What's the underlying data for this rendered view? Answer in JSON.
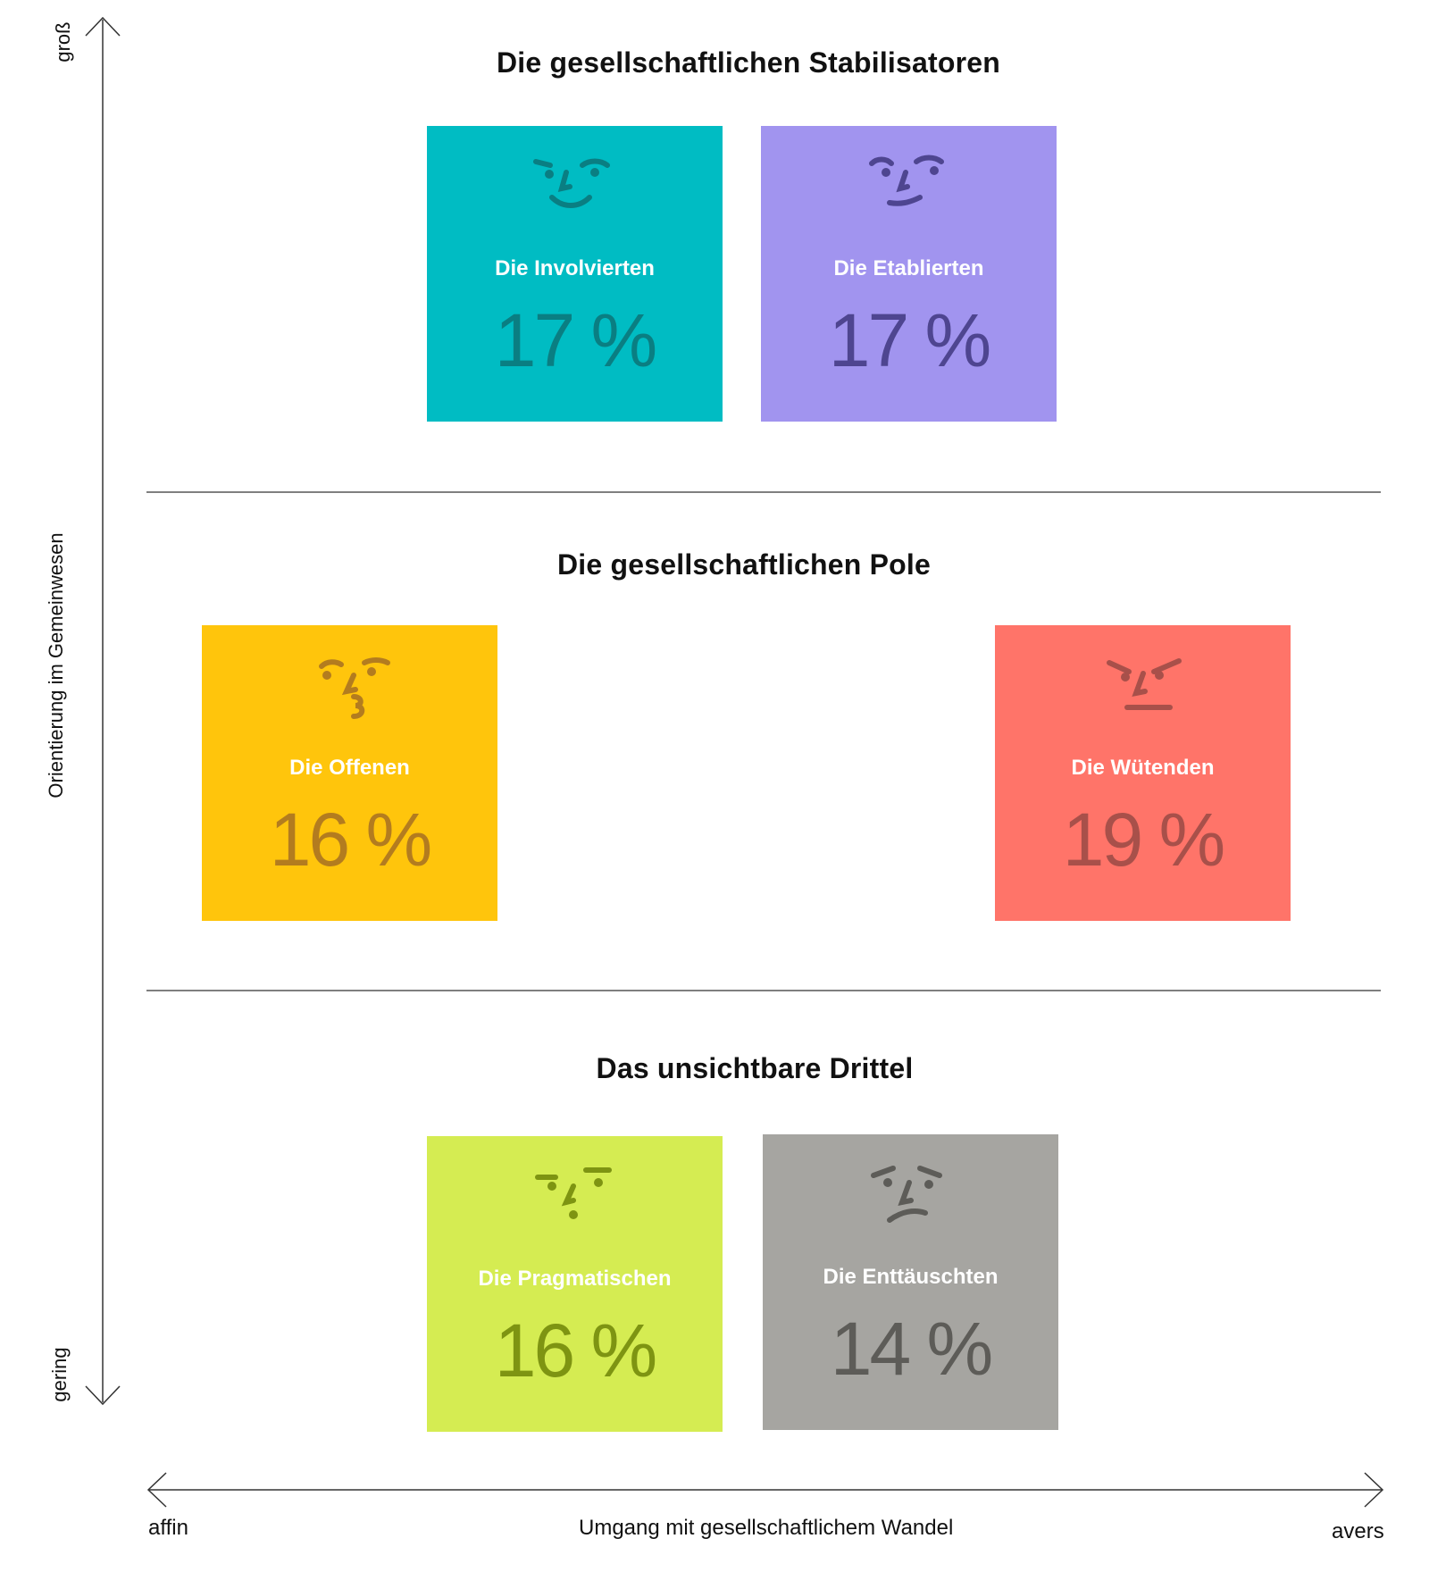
{
  "axes": {
    "y_label": "Orientierung im Gemeinwesen",
    "y_top": "groß",
    "y_bottom": "gering",
    "x_label": "Umgang mit gesellschaftlichem Wandel",
    "x_left": "affin",
    "x_right": "avers"
  },
  "sections": [
    {
      "title": "Die gesellschaftlichen Stabilisatoren"
    },
    {
      "title": "Die gesellschaftlichen Pole"
    },
    {
      "title": "Das unsichtbare Drittel"
    }
  ],
  "segments": [
    {
      "name": "Die Involvierten",
      "value": "17 %",
      "color": "#00BCC3",
      "ink": "#0A7E82",
      "face": "smile-face-icon"
    },
    {
      "name": "Die Etablierten",
      "value": "17 %",
      "color": "#A194EF",
      "ink": "#4E4590",
      "face": "smirk-face-icon"
    },
    {
      "name": "Die Offenen",
      "value": "16 %",
      "color": "#FFC50C",
      "ink": "#B37C1F",
      "face": "kiss-face-icon"
    },
    {
      "name": "Die Wütenden",
      "value": "19 %",
      "color": "#FF7469",
      "ink": "#A8504A",
      "face": "angry-face-icon"
    },
    {
      "name": "Die Pragmatischen",
      "value": "16 %",
      "color": "#D5EC52",
      "ink": "#7E9412",
      "face": "neutral-face-icon"
    },
    {
      "name": "Die Enttäuschten",
      "value": "14 %",
      "color": "#A6A5A1",
      "ink": "#5D5C58",
      "face": "sad-face-icon"
    }
  ]
}
